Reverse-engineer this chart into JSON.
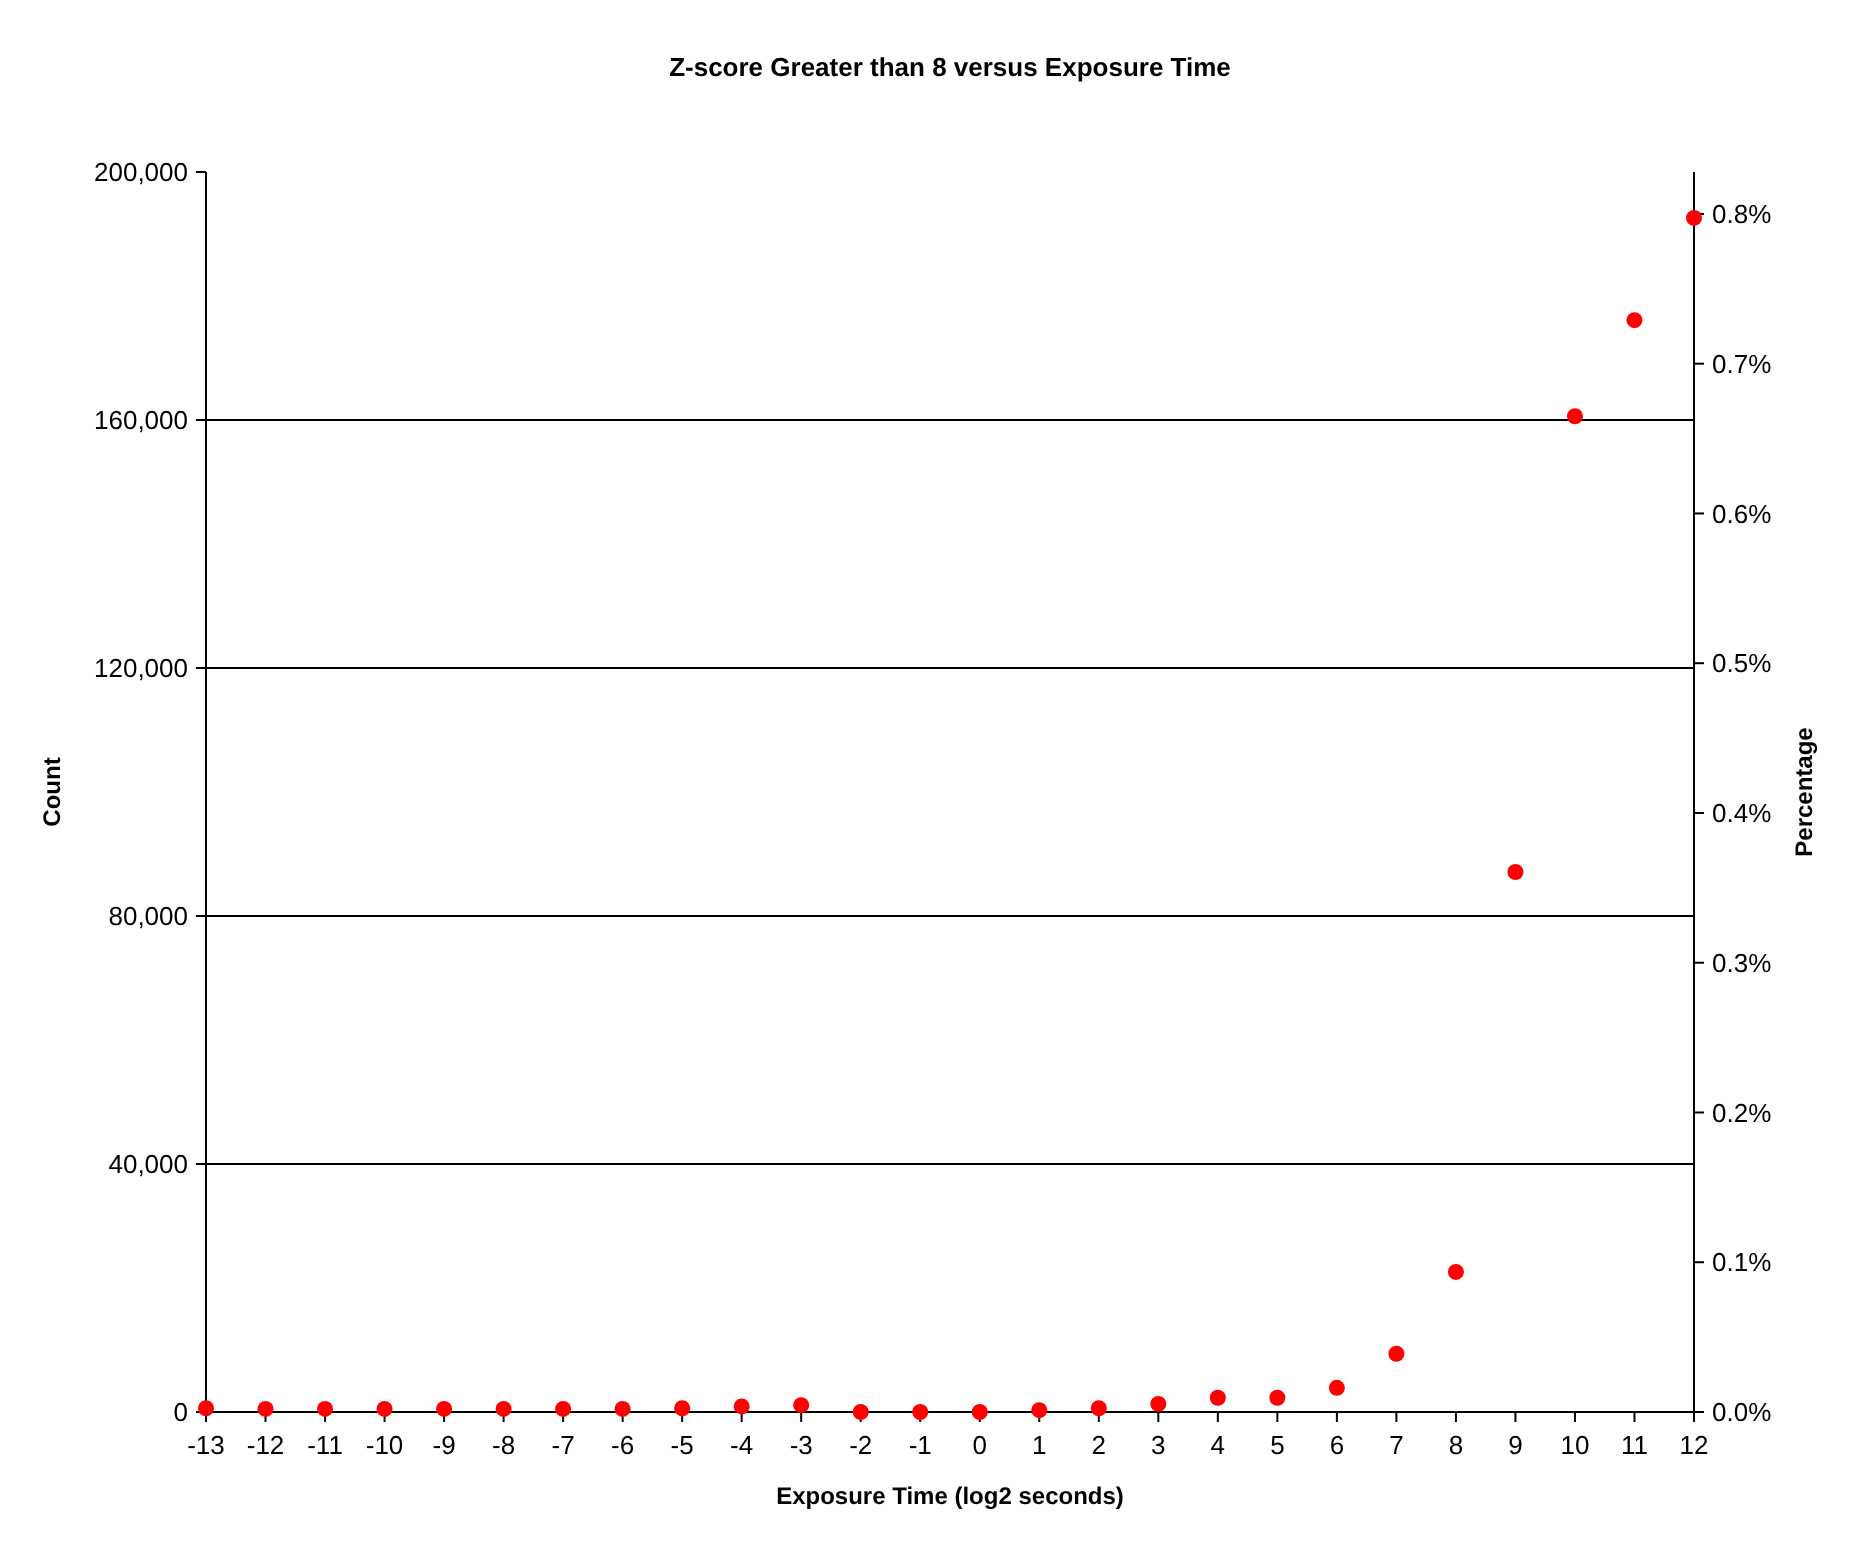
{
  "chart_data": {
    "type": "scatter",
    "title": "Z-score Greater than 8 versus Exposure Time",
    "xlabel": "Exposure Time (log2 seconds)",
    "ylabel": "Count",
    "y2label": "Percentage",
    "x": [
      -13,
      -12,
      -11,
      -10,
      -9,
      -8,
      -7,
      -6,
      -5,
      -4,
      -3,
      -2,
      -1,
      0,
      1,
      2,
      3,
      4,
      5,
      6,
      7,
      8,
      9,
      10,
      11,
      12
    ],
    "series": [
      {
        "color": "#ff0000",
        "values": [
          600,
          500,
          500,
          500,
          500,
          500,
          500,
          500,
          600,
          900,
          1100,
          0,
          0,
          0,
          300,
          600,
          1300,
          2300,
          2300,
          3900,
          9400,
          22600,
          87100,
          160600,
          176100,
          192600
        ]
      }
    ],
    "xlim": [
      -13,
      12
    ],
    "xticks": [
      -13,
      -12,
      -11,
      -10,
      -9,
      -8,
      -7,
      -6,
      -5,
      -4,
      -3,
      -2,
      -1,
      0,
      1,
      2,
      3,
      4,
      5,
      6,
      7,
      8,
      9,
      10,
      11,
      12
    ],
    "ylim": [
      0,
      200000
    ],
    "yticks": [
      {
        "value": 0,
        "label": "0"
      },
      {
        "value": 40000,
        "label": "40,000"
      },
      {
        "value": 80000,
        "label": "80,000"
      },
      {
        "value": 120000,
        "label": "120,000"
      },
      {
        "value": 160000,
        "label": "160,000"
      },
      {
        "value": 200000,
        "label": "200,000"
      }
    ],
    "y2lim": [
      0,
      0.828
    ],
    "y2ticks": [
      {
        "value": 0,
        "label": "0.0%"
      },
      {
        "value": 0.1,
        "label": "0.1%"
      },
      {
        "value": 0.2,
        "label": "0.2%"
      },
      {
        "value": 0.3,
        "label": "0.3%"
      },
      {
        "value": 0.4,
        "label": "0.4%"
      },
      {
        "value": 0.5,
        "label": "0.5%"
      },
      {
        "value": 0.6,
        "label": "0.6%"
      },
      {
        "value": 0.7,
        "label": "0.7%"
      },
      {
        "value": 0.8,
        "label": "0.8%"
      }
    ],
    "grid": "y",
    "marker": "circle"
  }
}
